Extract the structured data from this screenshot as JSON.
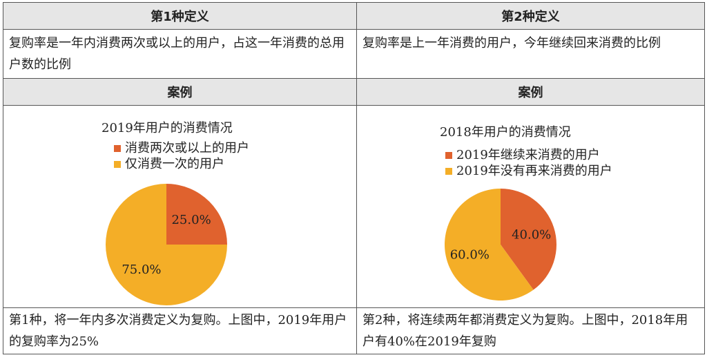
{
  "header": {
    "def1": "第1种定义",
    "def2": "第2种定义"
  },
  "definitions": {
    "def1_text": "复购率是一年内消费两次或以上的用户，占这一年消费的总用户数的比例",
    "def2_text": "复购率是上一年消费的用户，今年继续回来消费的比例"
  },
  "case_header": {
    "left": "案例",
    "right": "案例"
  },
  "chart_data": [
    {
      "type": "pie",
      "title": "2019年用户的消费情况",
      "legend": [
        "消费两次或以上的用户",
        "仅消费一次的用户"
      ],
      "categories": [
        "消费两次或以上的用户",
        "仅消费一次的用户"
      ],
      "values": [
        25.0,
        75.0
      ],
      "labels": [
        "25.0%",
        "75.0%"
      ],
      "colors": [
        "#e0622e",
        "#f4ae27"
      ]
    },
    {
      "type": "pie",
      "title": "2018年用户的消费情况",
      "legend": [
        "2019年继续来消费的用户",
        "2019年没有再来消费的用户"
      ],
      "categories": [
        "2019年继续来消费的用户",
        "2019年没有再来消费的用户"
      ],
      "values": [
        40.0,
        60.0
      ],
      "labels": [
        "40.0%",
        "60.0%"
      ],
      "colors": [
        "#e0622e",
        "#f4ae27"
      ]
    }
  ],
  "footer": {
    "left": "第1种，将一年内多次消费定义为复购。上图中，2019年用户的复购率为25%",
    "right": "第2种，将连续两年都消费定义为复购。上图中，2018年用户有40%在2019年复购"
  }
}
